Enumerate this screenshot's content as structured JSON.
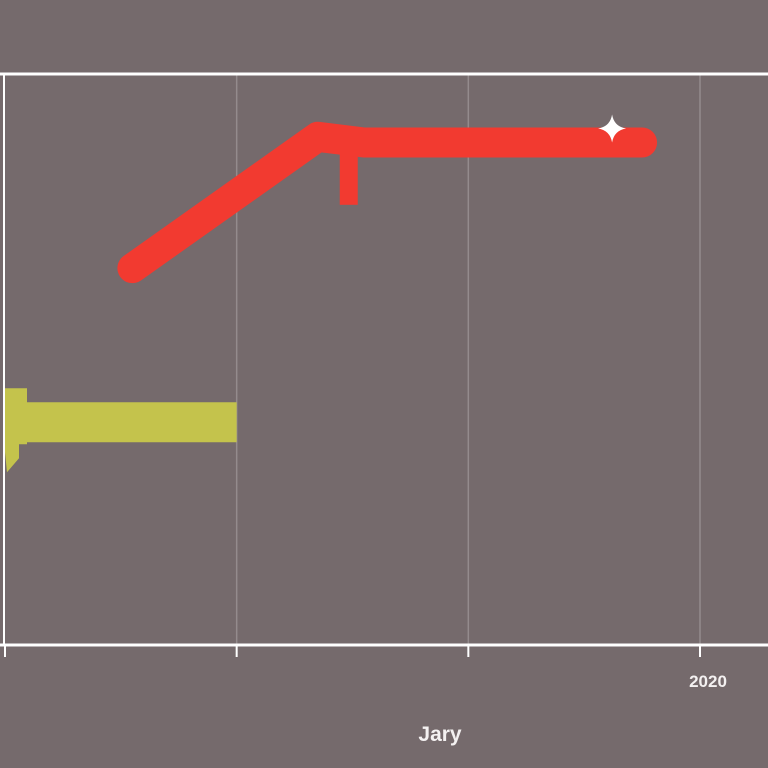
{
  "chart_data": {
    "type": "line",
    "title": "",
    "xlabel": "Jary",
    "ylabel": "",
    "x_ticks": [
      "",
      "",
      "",
      "2020"
    ],
    "grid": true,
    "legend": "none",
    "series": [
      {
        "color": "#f23a30",
        "points": [
          [
            0.55,
            0.66
          ],
          [
            1.35,
            0.89
          ],
          [
            1.55,
            0.88
          ],
          [
            2.75,
            0.88
          ]
        ]
      },
      {
        "color": "#c4c34c",
        "points": [
          [
            0.0,
            0.39
          ],
          [
            1.0,
            0.39
          ]
        ]
      }
    ],
    "colors": {
      "background": "#756a6c",
      "axis": "#ffffff",
      "grid": "#948b8d"
    }
  }
}
